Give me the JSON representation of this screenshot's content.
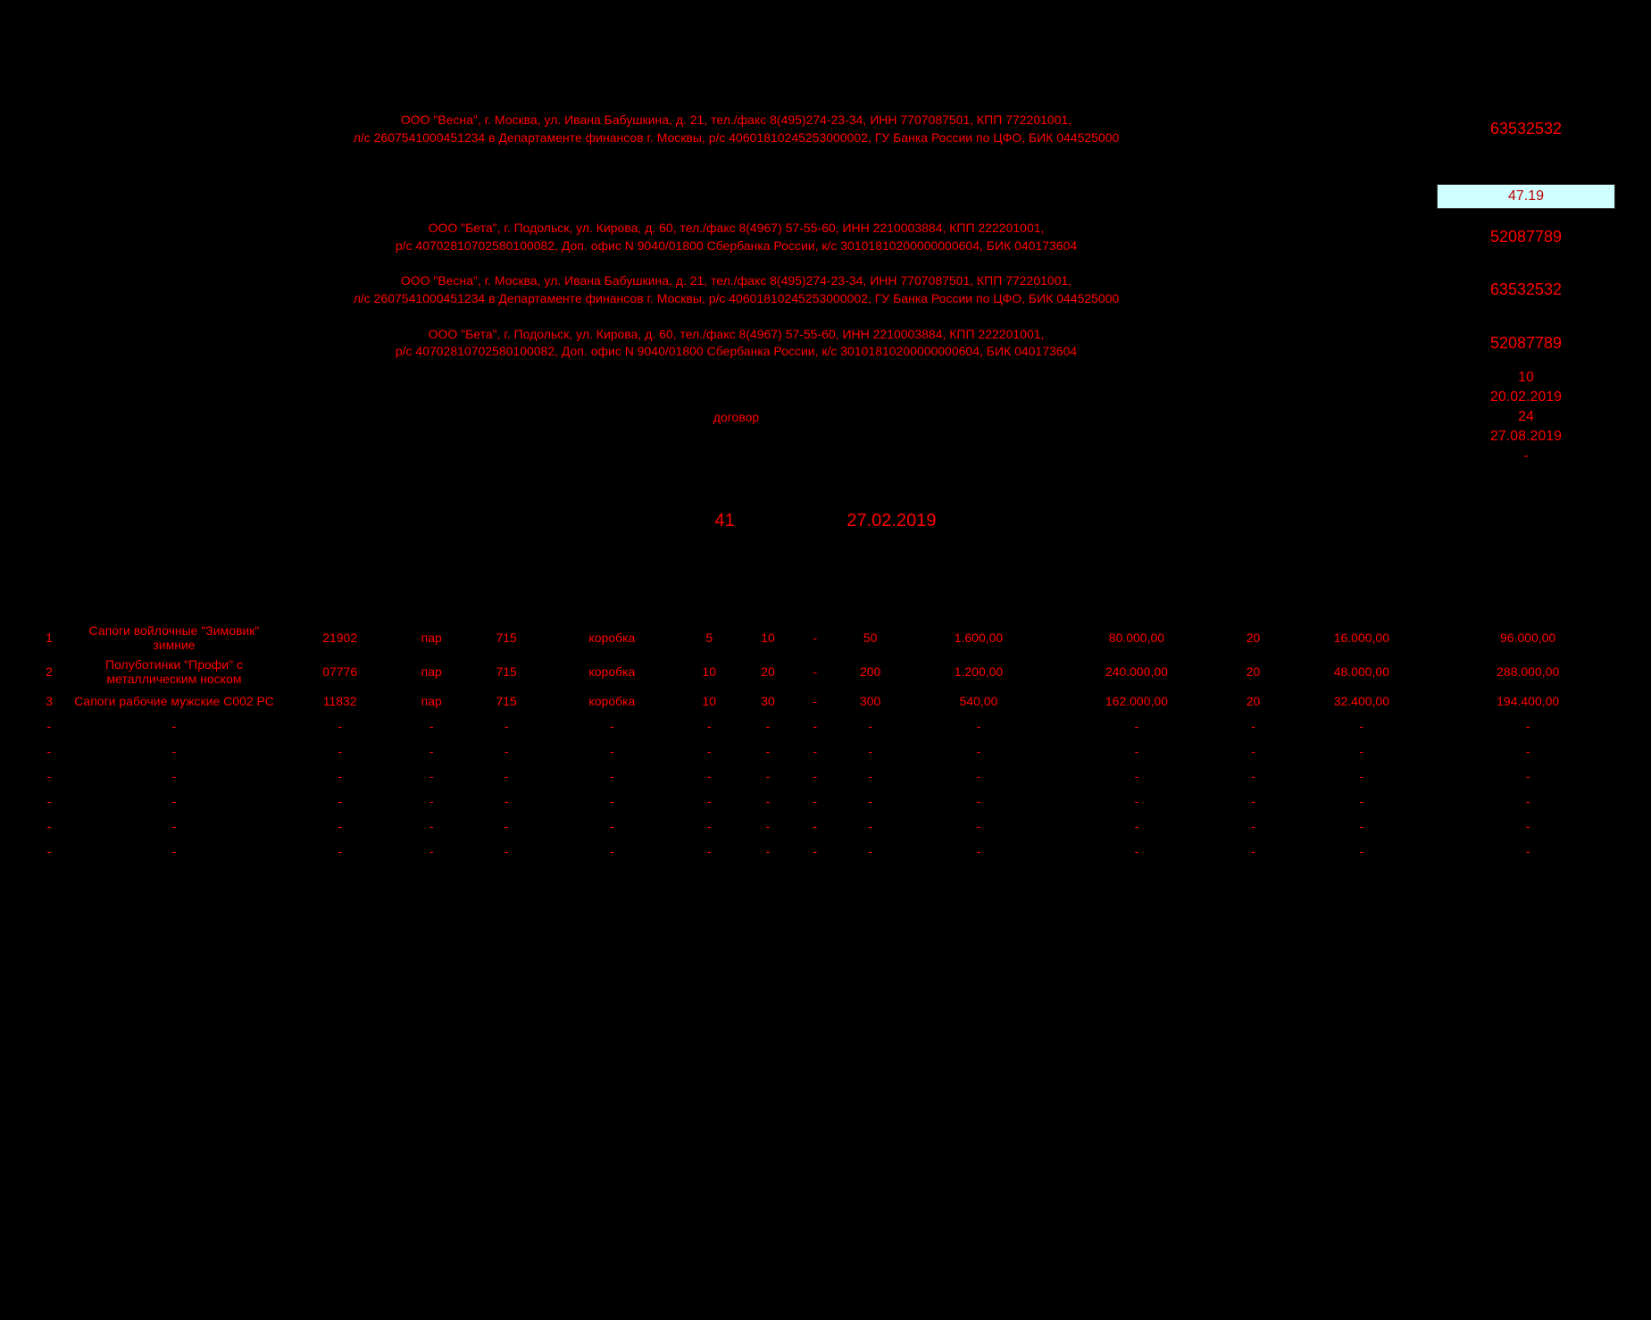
{
  "org1": {
    "line1": "ООО \"Весна\", г. Москва, ул. Ивана Бабушкина, д. 21, тел./факс 8(495)274-23-34, ИНН 7707087501, КПП 772201001,",
    "line2": "л/с 2607541000451234 в Департаменте финансов г. Москвы, р/с 40601810245253000002, ГУ Банка России по ЦФО, БИК 044525000",
    "code": "63532532"
  },
  "okud": "47.19",
  "org2": {
    "line1": "ООО \"Бета\", г. Подольск, ул. Кирова, д. 60, тел./факс 8(4967) 57-55-60, ИНН 2210003884, КПП 222201001,",
    "line2": "р/с 40702810702580100082, Доп. офис N 9040/01800 Сбербанка России, к/с 30101810200000000604, БИК 040173604",
    "code": "52087789"
  },
  "org3": {
    "line1": "ООО \"Весна\", г. Москва, ул. Ивана Бабушкина, д. 21, тел./факс 8(495)274-23-34, ИНН 7707087501, КПП 772201001,",
    "line2": "л/с 2607541000451234 в Департаменте финансов г. Москвы, р/с 40601810245253000002, ГУ Банка России по ЦФО, БИК 044525000",
    "code": "63532532"
  },
  "org4": {
    "line1": "ООО \"Бета\", г. Подольск, ул. Кирова, д. 60, тел./факс 8(4967) 57-55-60, ИНН 2210003884, КПП 222201001,",
    "line2": "р/с 40702810702580100082, Доп. офис N 9040/01800 Сбербанка России, к/с 30101810200000000604, БИК 040173604",
    "code": "52087789"
  },
  "basis": "договор",
  "right_vals": {
    "v1": "10",
    "v2": "20.02.2019",
    "v3": "24",
    "v4": "27.08.2019",
    "v5": "-"
  },
  "doc": {
    "num": "41",
    "date": "27.02.2019"
  },
  "items": [
    {
      "n": "1",
      "name": "Сапоги войлочные \"Зимовик\" зимние",
      "code": "21902",
      "unit": "пар",
      "okei": "715",
      "pack": "коробка",
      "inpack": "5",
      "places": "10",
      "gross": "-",
      "qty": "50",
      "price": "1.600,00",
      "sum": "80.000,00",
      "vat": "20",
      "vatsum": "16.000,00",
      "total": "96.000,00"
    },
    {
      "n": "2",
      "name": "Полуботинки \"Профи\" с металлическим носком",
      "code": "07776",
      "unit": "пар",
      "okei": "715",
      "pack": "коробка",
      "inpack": "10",
      "places": "20",
      "gross": "-",
      "qty": "200",
      "price": "1.200,00",
      "sum": "240.000,00",
      "vat": "20",
      "vatsum": "48.000,00",
      "total": "288.000,00"
    },
    {
      "n": "3",
      "name": "Сапоги рабочие мужские С002 РС",
      "code": "11832",
      "unit": "пар",
      "okei": "715",
      "pack": "коробка",
      "inpack": "10",
      "places": "30",
      "gross": "-",
      "qty": "300",
      "price": "540,00",
      "sum": "162.000,00",
      "vat": "20",
      "vatsum": "32.400,00",
      "total": "194.400,00"
    },
    {
      "n": "-",
      "name": "-",
      "code": "-",
      "unit": "-",
      "okei": "-",
      "pack": "-",
      "inpack": "-",
      "places": "-",
      "gross": "-",
      "qty": "-",
      "price": "-",
      "sum": "-",
      "vat": "-",
      "vatsum": "-",
      "total": "-"
    },
    {
      "n": "-",
      "name": "-",
      "code": "-",
      "unit": "-",
      "okei": "-",
      "pack": "-",
      "inpack": "-",
      "places": "-",
      "gross": "-",
      "qty": "-",
      "price": "-",
      "sum": "-",
      "vat": "-",
      "vatsum": "-",
      "total": "-"
    },
    {
      "n": "-",
      "name": "-",
      "code": "-",
      "unit": "-",
      "okei": "-",
      "pack": "-",
      "inpack": "-",
      "places": "-",
      "gross": "-",
      "qty": "-",
      "price": "-",
      "sum": "-",
      "vat": "-",
      "vatsum": "-",
      "total": "-"
    },
    {
      "n": "-",
      "name": "-",
      "code": "-",
      "unit": "-",
      "okei": "-",
      "pack": "-",
      "inpack": "-",
      "places": "-",
      "gross": "-",
      "qty": "-",
      "price": "-",
      "sum": "-",
      "vat": "-",
      "vatsum": "-",
      "total": "-"
    },
    {
      "n": "-",
      "name": "-",
      "code": "-",
      "unit": "-",
      "okei": "-",
      "pack": "-",
      "inpack": "-",
      "places": "-",
      "gross": "-",
      "qty": "-",
      "price": "-",
      "sum": "-",
      "vat": "-",
      "vatsum": "-",
      "total": "-"
    },
    {
      "n": "-",
      "name": "-",
      "code": "-",
      "unit": "-",
      "okei": "-",
      "pack": "-",
      "inpack": "-",
      "places": "-",
      "gross": "-",
      "qty": "-",
      "price": "-",
      "sum": "-",
      "vat": "-",
      "vatsum": "-",
      "total": "-"
    }
  ]
}
